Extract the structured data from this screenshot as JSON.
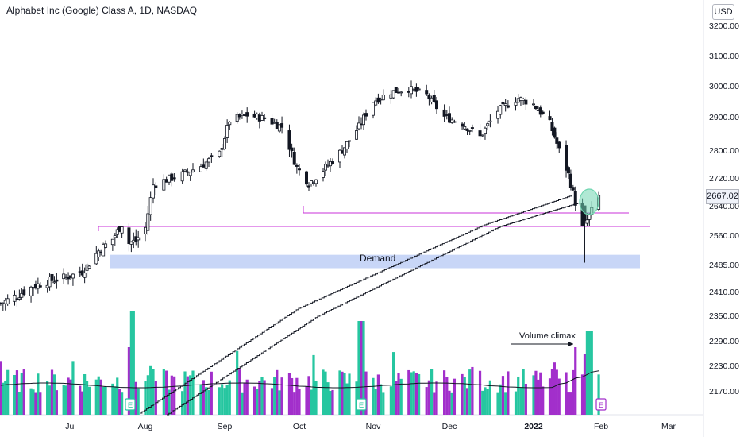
{
  "header": {
    "title": "Alphabet Inc (Google) Class A, 1D, NASDAQ",
    "currency": "USD"
  },
  "annotations": {
    "demand": "Demand",
    "volume_climax": "Volume climax",
    "last_price": "2667.02",
    "earnings_marker": "E"
  },
  "colors": {
    "up": "#26a69a",
    "down": "#131722",
    "vol_up": "#26c6a0",
    "vol_down": "#a22fcb",
    "demand_zone": "#c8d6f7",
    "level_line": "#c832d8",
    "ma_line": "#131722",
    "circle": "#6fd6b0"
  },
  "chart_data": {
    "type": "candlestick",
    "title": "Alphabet Inc (Google) Class A, 1D, NASDAQ",
    "xlabel": "",
    "ylabel": "USD",
    "y_ticks": [
      3200.0,
      3100.0,
      3000.0,
      2900.0,
      2800.0,
      2720.0,
      2640.0,
      2560.0,
      2485.0,
      2410.0,
      2350.0,
      2290.0,
      2230.0,
      2170.0
    ],
    "x_ticks": [
      "Jul",
      "Aug",
      "Sep",
      "Oct",
      "Nov",
      "Dec",
      "2022",
      "Feb",
      "Mar"
    ],
    "x_tick_dates": [
      "2021-07-01",
      "2021-08-02",
      "2021-09-01",
      "2021-10-01",
      "2021-11-01",
      "2021-12-01",
      "2022-01-03",
      "2022-02-01",
      "2022-03-01"
    ],
    "close_series": [
      [
        "2021-06-01",
        2380
      ],
      [
        "2021-06-08",
        2400
      ],
      [
        "2021-06-15",
        2425
      ],
      [
        "2021-06-22",
        2440
      ],
      [
        "2021-06-29",
        2450
      ],
      [
        "2021-07-06",
        2465
      ],
      [
        "2021-07-13",
        2520
      ],
      [
        "2021-07-19",
        2550
      ],
      [
        "2021-07-23",
        2590
      ],
      [
        "2021-07-26",
        2540
      ],
      [
        "2021-07-29",
        2545
      ],
      [
        "2021-08-02",
        2580
      ],
      [
        "2021-08-05",
        2700
      ],
      [
        "2021-08-10",
        2715
      ],
      [
        "2021-08-16",
        2730
      ],
      [
        "2021-08-23",
        2755
      ],
      [
        "2021-08-30",
        2790
      ],
      [
        "2021-09-03",
        2890
      ],
      [
        "2021-09-10",
        2905
      ],
      [
        "2021-09-17",
        2895
      ],
      [
        "2021-09-24",
        2870
      ],
      [
        "2021-09-30",
        2750
      ],
      [
        "2021-10-05",
        2705
      ],
      [
        "2021-10-12",
        2750
      ],
      [
        "2021-10-19",
        2800
      ],
      [
        "2021-10-26",
        2870
      ],
      [
        "2021-11-01",
        2950
      ],
      [
        "2021-11-08",
        2980
      ],
      [
        "2021-11-15",
        2990
      ],
      [
        "2021-11-22",
        2970
      ],
      [
        "2021-11-29",
        2900
      ],
      [
        "2021-12-06",
        2880
      ],
      [
        "2021-12-13",
        2840
      ],
      [
        "2021-12-20",
        2920
      ],
      [
        "2021-12-28",
        2960
      ],
      [
        "2022-01-03",
        2940
      ],
      [
        "2022-01-10",
        2880
      ],
      [
        "2022-01-14",
        2800
      ],
      [
        "2022-01-18",
        2730
      ],
      [
        "2022-01-21",
        2650
      ],
      [
        "2022-01-24",
        2580
      ],
      [
        "2022-01-26",
        2600
      ],
      [
        "2022-01-28",
        2625
      ],
      [
        "2022-01-31",
        2667.02
      ]
    ],
    "moving_average": "stepped black line rising from Aug to late Jan",
    "levels": [
      2620,
      2570
    ],
    "demand_zone": [
      2475,
      2510
    ],
    "volume": {
      "ylim": [
        0,
        1
      ],
      "note": "relative volume bars under price; spike in late July and late January"
    },
    "legend": "none",
    "grid": "off"
  }
}
